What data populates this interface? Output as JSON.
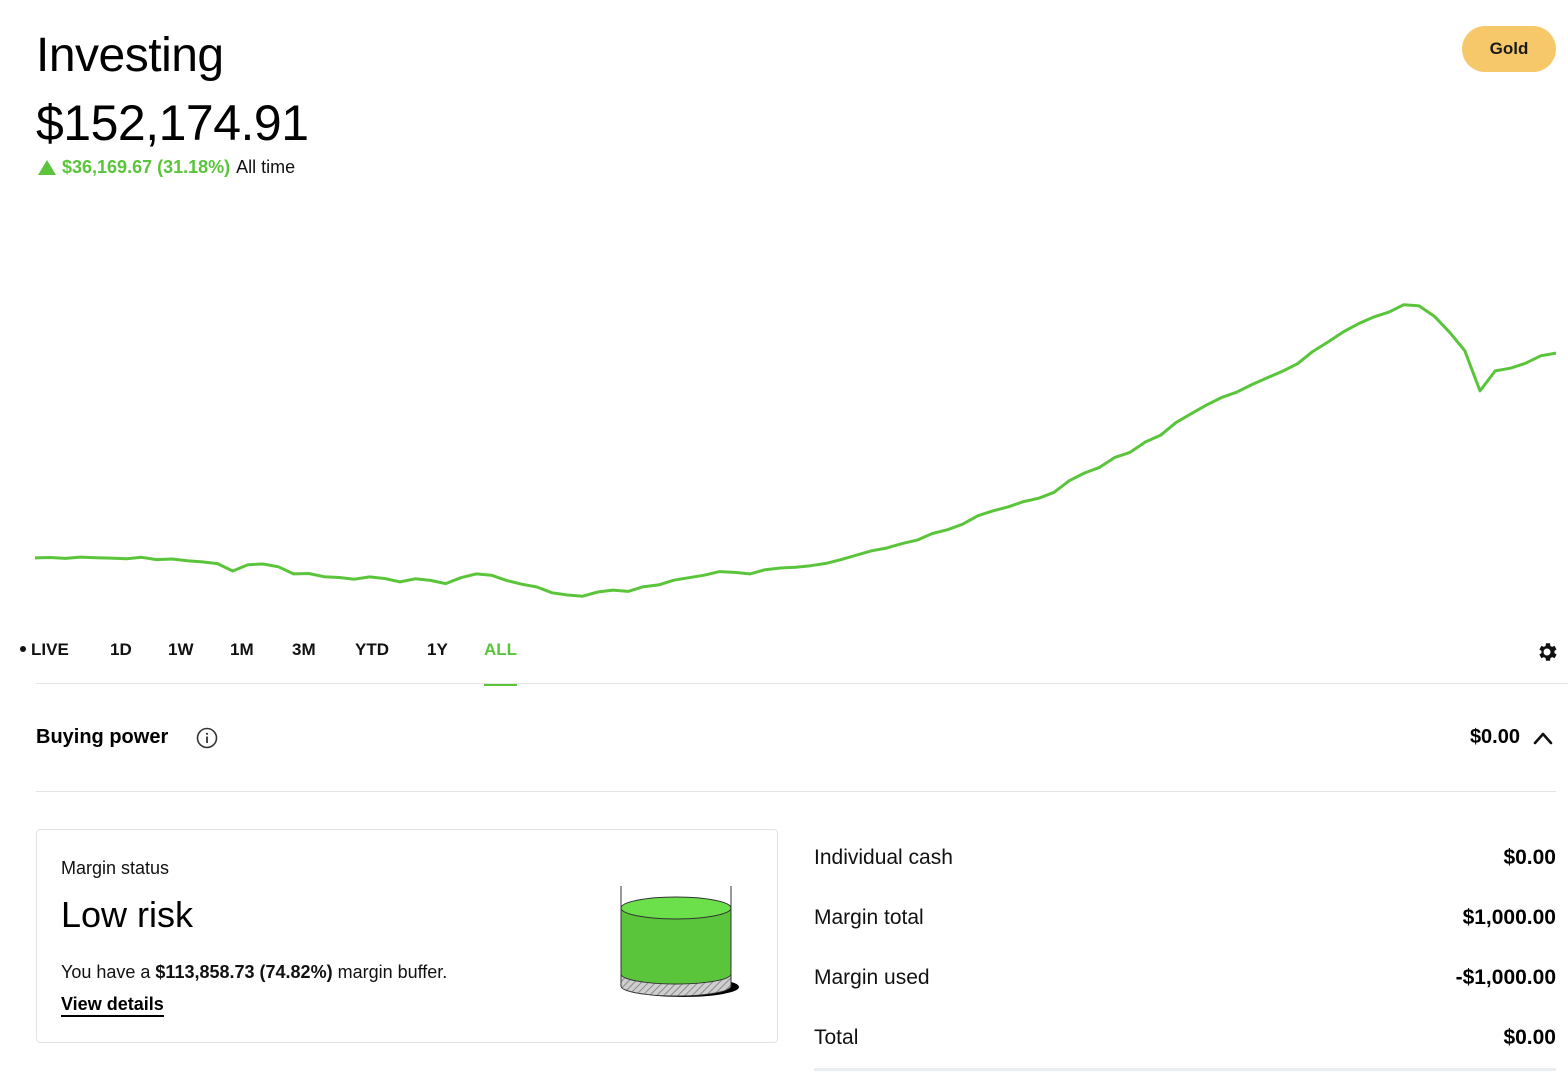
{
  "header": {
    "title": "Investing",
    "portfolio_value": "$152,174.91",
    "change_amount": "$36,169.67 (31.18%)",
    "change_period": "All time",
    "gold_label": "Gold",
    "positive_color": "#5AC53B",
    "gold_color": "#F6C86A"
  },
  "chart_data": {
    "type": "line",
    "series": [
      {
        "values": [
          100,
          100.2,
          99.8,
          100.4,
          100.1,
          99.9,
          99.6,
          100.3,
          99.2,
          99.5,
          98.7,
          98.1,
          97.3,
          93.8,
          96.8,
          97.1,
          95.8,
          92.4,
          92.6,
          91.1,
          90.7,
          89.9,
          91.0,
          90.2,
          88.6,
          90.1,
          89.3,
          87.8,
          90.6,
          92.4,
          91.8,
          89.3,
          87.5,
          86.2,
          83.4,
          82.4,
          81.8,
          83.8,
          84.7,
          84.1,
          86.3,
          87.2,
          89.4,
          90.6,
          91.8,
          93.5,
          93.1,
          92.4,
          94.4,
          95.2,
          95.6,
          96.3,
          97.4,
          99.2,
          101.3,
          103.4,
          104.7,
          106.8,
          108.5,
          111.6,
          113.4,
          116.1,
          120.1,
          122.4,
          124.3,
          126.8,
          128.4,
          131.2,
          136.7,
          140.4,
          143.1,
          147.8,
          150.2,
          155.1,
          158.3,
          164.3,
          168.5,
          172.6,
          176.2,
          178.8,
          182.4,
          185.6,
          188.7,
          192.3,
          198.1,
          202.6,
          207.4,
          211.3,
          214.5,
          216.8,
          220.4,
          219.8,
          214.9,
          207.3,
          198.6,
          179.4,
          188.9,
          190.2,
          192.6,
          196.1,
          197.4
        ]
      }
    ],
    "x_start_label": "",
    "ranges": [
      "LIVE",
      "1D",
      "1W",
      "1M",
      "3M",
      "YTD",
      "1Y",
      "ALL"
    ],
    "active_range": "ALL",
    "grid": false,
    "line_color": "#5AC53B"
  },
  "buying_power": {
    "label": "Buying power",
    "value": "$0.00"
  },
  "margin": {
    "label": "Margin status",
    "status": "Low risk",
    "text_prefix": "You have a ",
    "buffer": "$113,858.73 (74.82%)",
    "text_suffix": " margin buffer.",
    "link": "View details",
    "level_fraction": 0.75
  },
  "breakdown": {
    "rows": [
      {
        "label": "Individual cash",
        "value": "$0.00"
      },
      {
        "label": "Margin total",
        "value": "$1,000.00"
      },
      {
        "label": "Margin used",
        "value": "-$1,000.00"
      },
      {
        "label": "Total",
        "value": "$0.00"
      }
    ]
  }
}
